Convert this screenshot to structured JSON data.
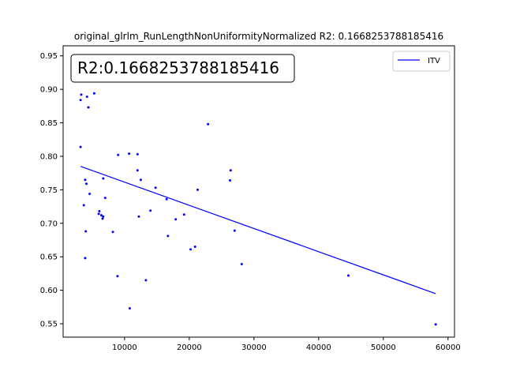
{
  "chart_data": {
    "type": "scatter",
    "title": "original_glrlm_RunLengthNonUniformityNormalized R2: 0.1668253788185416",
    "annotation": "R2:0.1668253788185416",
    "xlabel": "",
    "ylabel": "",
    "xlim": [
      500,
      61000
    ],
    "ylim": [
      0.53,
      0.965
    ],
    "xticks": [
      10000,
      20000,
      30000,
      40000,
      50000,
      60000
    ],
    "xtick_labels": [
      "10000",
      "20000",
      "30000",
      "40000",
      "50000",
      "60000"
    ],
    "yticks": [
      0.55,
      0.6,
      0.65,
      0.7,
      0.75,
      0.8,
      0.85,
      0.9,
      0.95
    ],
    "ytick_labels": [
      "0.55",
      "0.60",
      "0.65",
      "0.70",
      "0.75",
      "0.80",
      "0.85",
      "0.90",
      "0.95"
    ],
    "grid": false,
    "legend_position": "top-right",
    "legend": [
      {
        "label": "ITV",
        "color": "#0000ff"
      }
    ],
    "series": [
      {
        "kind": "points",
        "color": "#0000ff",
        "points": [
          [
            3300,
            0.892
          ],
          [
            3200,
            0.884
          ],
          [
            4200,
            0.889
          ],
          [
            5300,
            0.894
          ],
          [
            4400,
            0.873
          ],
          [
            3200,
            0.814
          ],
          [
            3900,
            0.765
          ],
          [
            4100,
            0.759
          ],
          [
            4600,
            0.744
          ],
          [
            3700,
            0.727
          ],
          [
            4000,
            0.688
          ],
          [
            3900,
            0.648
          ],
          [
            6000,
            0.714
          ],
          [
            6100,
            0.718
          ],
          [
            6400,
            0.712
          ],
          [
            6600,
            0.707
          ],
          [
            6700,
            0.71
          ],
          [
            6700,
            0.767
          ],
          [
            7000,
            0.738
          ],
          [
            8200,
            0.687
          ],
          [
            8900,
            0.621
          ],
          [
            9000,
            0.802
          ],
          [
            10700,
            0.804
          ],
          [
            12000,
            0.803
          ],
          [
            12000,
            0.779
          ],
          [
            12500,
            0.765
          ],
          [
            12200,
            0.71
          ],
          [
            10800,
            0.573
          ],
          [
            13300,
            0.615
          ],
          [
            14000,
            0.719
          ],
          [
            14800,
            0.753
          ],
          [
            16500,
            0.736
          ],
          [
            16700,
            0.681
          ],
          [
            17900,
            0.706
          ],
          [
            19200,
            0.713
          ],
          [
            20200,
            0.661
          ],
          [
            20900,
            0.665
          ],
          [
            21300,
            0.75
          ],
          [
            22900,
            0.848
          ],
          [
            26300,
            0.764
          ],
          [
            26400,
            0.779
          ],
          [
            27000,
            0.689
          ],
          [
            28100,
            0.639
          ],
          [
            44600,
            0.622
          ],
          [
            58100,
            0.549
          ]
        ]
      },
      {
        "kind": "line",
        "name": "ITV",
        "color": "#0000ff",
        "points": [
          [
            3200,
            0.785
          ],
          [
            58100,
            0.595
          ]
        ]
      }
    ]
  }
}
